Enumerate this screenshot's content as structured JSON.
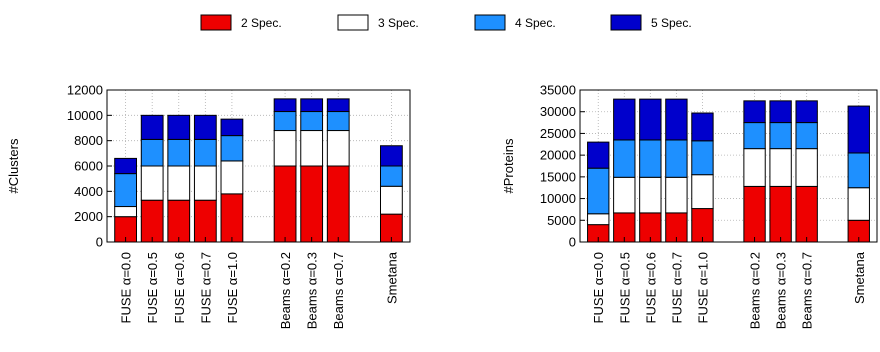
{
  "legend": {
    "position": "top-center",
    "entries": [
      {
        "label": "2 Spec.",
        "color": "#ee0000"
      },
      {
        "label": "3 Spec.",
        "color": "#ffffff"
      },
      {
        "label": "4 Spec.",
        "color": "#1e90ff"
      },
      {
        "label": "5 Spec.",
        "color": "#0000cc"
      }
    ]
  },
  "chart_data": [
    {
      "type": "bar",
      "stacked": true,
      "grid": true,
      "ylabel": "#Clusters",
      "ylim": [
        0,
        12000
      ],
      "yticks": [
        0,
        2000,
        4000,
        6000,
        8000,
        10000,
        12000
      ],
      "groups": [
        [
          "FUSE α=0.0",
          "FUSE α=0.5",
          "FUSE α=0.6",
          "FUSE α=0.7",
          "FUSE α=1.0"
        ],
        [
          "Beams α=0.2",
          "Beams α=0.3",
          "Beams α=0.7"
        ],
        [
          "Smetana"
        ]
      ],
      "categories": [
        "FUSE α=0.0",
        "FUSE α=0.5",
        "FUSE α=0.6",
        "FUSE α=0.7",
        "FUSE α=1.0",
        "Beams α=0.2",
        "Beams α=0.3",
        "Beams α=0.7",
        "Smetana"
      ],
      "series": [
        {
          "name": "2 Spec.",
          "color": "#ee0000",
          "values": [
            2000,
            3300,
            3300,
            3300,
            3800,
            6000,
            6000,
            6000,
            2200
          ]
        },
        {
          "name": "3 Spec.",
          "color": "#ffffff",
          "values": [
            800,
            2700,
            2700,
            2700,
            2600,
            2800,
            2800,
            2800,
            2200
          ]
        },
        {
          "name": "4 Spec.",
          "color": "#1e90ff",
          "values": [
            2600,
            2100,
            2100,
            2100,
            2000,
            1500,
            1500,
            1500,
            1600
          ]
        },
        {
          "name": "5 Spec.",
          "color": "#0000cc",
          "values": [
            1200,
            1900,
            1900,
            1900,
            1300,
            1000,
            1000,
            1000,
            1600
          ]
        }
      ]
    },
    {
      "type": "bar",
      "stacked": true,
      "grid": true,
      "ylabel": "#Proteins",
      "ylim": [
        0,
        35000
      ],
      "yticks": [
        0,
        5000,
        10000,
        15000,
        20000,
        25000,
        30000,
        35000
      ],
      "groups": [
        [
          "FUSE α=0.0",
          "FUSE α=0.5",
          "FUSE α=0.6",
          "FUSE α=0.7",
          "FUSE α=1.0"
        ],
        [
          "Beams α=0.2",
          "Beams α=0.3",
          "Beams α=0.7"
        ],
        [
          "Smetana"
        ]
      ],
      "categories": [
        "FUSE α=0.0",
        "FUSE α=0.5",
        "FUSE α=0.6",
        "FUSE α=0.7",
        "FUSE α=1.0",
        "Beams α=0.2",
        "Beams α=0.3",
        "Beams α=0.7",
        "Smetana"
      ],
      "series": [
        {
          "name": "2 Spec.",
          "color": "#ee0000",
          "values": [
            4000,
            6700,
            6700,
            6700,
            7700,
            12800,
            12800,
            12800,
            5000
          ]
        },
        {
          "name": "3 Spec.",
          "color": "#ffffff",
          "values": [
            2500,
            8200,
            8200,
            8200,
            7800,
            8700,
            8700,
            8700,
            7500
          ]
        },
        {
          "name": "4 Spec.",
          "color": "#1e90ff",
          "values": [
            10500,
            8600,
            8600,
            8600,
            7800,
            6000,
            6000,
            6000,
            8000
          ]
        },
        {
          "name": "5 Spec.",
          "color": "#0000cc",
          "values": [
            6000,
            9400,
            9400,
            9400,
            6400,
            5000,
            5000,
            5000,
            10800
          ]
        }
      ]
    }
  ]
}
